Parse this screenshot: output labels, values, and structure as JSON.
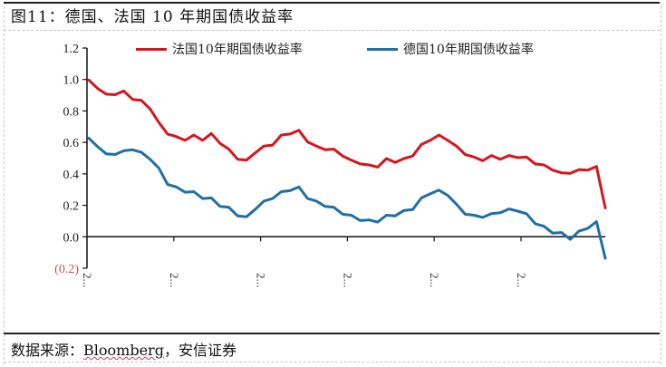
{
  "figure": {
    "title": "图11：德国、法国 10 年期国债收益率",
    "source_prefix": "数据来源：",
    "source_brand": "Bloomberg",
    "source_suffix": "，安信证券"
  },
  "legend": [
    {
      "label": "法国10年期国债收益率",
      "color": "#d8141e"
    },
    {
      "label": "德国10年期国债收益率",
      "color": "#1f6fa8"
    }
  ],
  "chart_data": {
    "type": "line",
    "title": "图11：德国、法国 10 年期国债收益率",
    "xlabel": "",
    "ylabel": "",
    "ylim": [
      -0.2,
      1.2
    ],
    "y_ticks": [
      "1.2",
      "1.0",
      "0.8",
      "0.6",
      "0.4",
      "0.2",
      "0.0",
      "(0.2)"
    ],
    "x_tick_labels": [
      "2...",
      "2...",
      "2...",
      "2...",
      "2...",
      "2..."
    ],
    "grid": false,
    "legend_position": "top",
    "x": [
      0,
      1,
      2,
      3,
      4,
      5,
      6,
      7,
      8,
      9,
      10,
      11,
      12,
      13,
      14,
      15,
      16,
      17,
      18,
      19,
      20,
      21,
      22,
      23,
      24,
      25,
      26,
      27,
      28,
      29,
      30,
      31,
      32,
      33,
      34,
      35,
      36,
      37,
      38,
      39,
      40,
      41,
      42,
      43,
      44,
      45,
      46,
      47,
      48,
      49,
      50,
      51,
      52,
      53,
      54,
      55,
      56,
      57,
      58,
      59
    ],
    "series": [
      {
        "name": "法国10年期国债收益率",
        "color": "#d8141e",
        "values": [
          0.99,
          0.95,
          0.9,
          0.91,
          0.92,
          0.88,
          0.86,
          0.82,
          0.72,
          0.66,
          0.63,
          0.62,
          0.64,
          0.62,
          0.65,
          0.6,
          0.55,
          0.5,
          0.48,
          0.54,
          0.57,
          0.59,
          0.64,
          0.66,
          0.67,
          0.61,
          0.57,
          0.56,
          0.55,
          0.52,
          0.48,
          0.47,
          0.45,
          0.45,
          0.49,
          0.48,
          0.49,
          0.52,
          0.58,
          0.62,
          0.64,
          0.62,
          0.57,
          0.53,
          0.5,
          0.49,
          0.51,
          0.5,
          0.51,
          0.51,
          0.5,
          0.47,
          0.45,
          0.43,
          0.4,
          0.41,
          0.42,
          0.43,
          0.44,
          0.19
        ]
      },
      {
        "name": "德国10年期国债收益率",
        "color": "#1f6fa8",
        "values": [
          0.62,
          0.58,
          0.52,
          0.53,
          0.54,
          0.56,
          0.53,
          0.5,
          0.43,
          0.34,
          0.31,
          0.29,
          0.28,
          0.25,
          0.24,
          0.2,
          0.18,
          0.14,
          0.12,
          0.18,
          0.22,
          0.25,
          0.28,
          0.3,
          0.31,
          0.25,
          0.22,
          0.2,
          0.18,
          0.15,
          0.13,
          0.11,
          0.1,
          0.1,
          0.13,
          0.14,
          0.16,
          0.18,
          0.24,
          0.28,
          0.29,
          0.27,
          0.2,
          0.15,
          0.13,
          0.13,
          0.14,
          0.16,
          0.17,
          0.17,
          0.14,
          0.09,
          0.06,
          0.03,
          0.02,
          -0.01,
          0.03,
          0.06,
          0.09,
          -0.13
        ]
      }
    ]
  }
}
